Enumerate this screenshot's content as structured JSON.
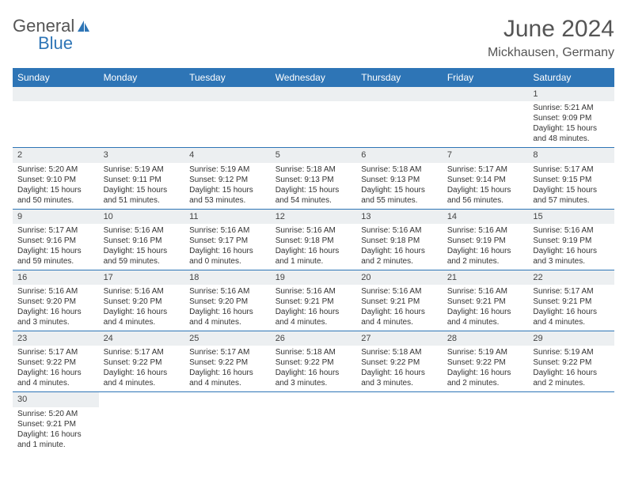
{
  "logo": {
    "text1": "General",
    "text2": "Blue"
  },
  "title": "June 2024",
  "location": "Mickhausen, Germany",
  "colors": {
    "header_bg": "#2e75b6",
    "header_text": "#ffffff",
    "daynum_bg": "#eceff1",
    "rule": "#2e75b6"
  },
  "daynames": [
    "Sunday",
    "Monday",
    "Tuesday",
    "Wednesday",
    "Thursday",
    "Friday",
    "Saturday"
  ],
  "weeks": [
    [
      null,
      null,
      null,
      null,
      null,
      null,
      {
        "n": "1",
        "sr": "Sunrise: 5:21 AM",
        "ss": "Sunset: 9:09 PM",
        "dl": "Daylight: 15 hours and 48 minutes."
      }
    ],
    [
      {
        "n": "2",
        "sr": "Sunrise: 5:20 AM",
        "ss": "Sunset: 9:10 PM",
        "dl": "Daylight: 15 hours and 50 minutes."
      },
      {
        "n": "3",
        "sr": "Sunrise: 5:19 AM",
        "ss": "Sunset: 9:11 PM",
        "dl": "Daylight: 15 hours and 51 minutes."
      },
      {
        "n": "4",
        "sr": "Sunrise: 5:19 AM",
        "ss": "Sunset: 9:12 PM",
        "dl": "Daylight: 15 hours and 53 minutes."
      },
      {
        "n": "5",
        "sr": "Sunrise: 5:18 AM",
        "ss": "Sunset: 9:13 PM",
        "dl": "Daylight: 15 hours and 54 minutes."
      },
      {
        "n": "6",
        "sr": "Sunrise: 5:18 AM",
        "ss": "Sunset: 9:13 PM",
        "dl": "Daylight: 15 hours and 55 minutes."
      },
      {
        "n": "7",
        "sr": "Sunrise: 5:17 AM",
        "ss": "Sunset: 9:14 PM",
        "dl": "Daylight: 15 hours and 56 minutes."
      },
      {
        "n": "8",
        "sr": "Sunrise: 5:17 AM",
        "ss": "Sunset: 9:15 PM",
        "dl": "Daylight: 15 hours and 57 minutes."
      }
    ],
    [
      {
        "n": "9",
        "sr": "Sunrise: 5:17 AM",
        "ss": "Sunset: 9:16 PM",
        "dl": "Daylight: 15 hours and 59 minutes."
      },
      {
        "n": "10",
        "sr": "Sunrise: 5:16 AM",
        "ss": "Sunset: 9:16 PM",
        "dl": "Daylight: 15 hours and 59 minutes."
      },
      {
        "n": "11",
        "sr": "Sunrise: 5:16 AM",
        "ss": "Sunset: 9:17 PM",
        "dl": "Daylight: 16 hours and 0 minutes."
      },
      {
        "n": "12",
        "sr": "Sunrise: 5:16 AM",
        "ss": "Sunset: 9:18 PM",
        "dl": "Daylight: 16 hours and 1 minute."
      },
      {
        "n": "13",
        "sr": "Sunrise: 5:16 AM",
        "ss": "Sunset: 9:18 PM",
        "dl": "Daylight: 16 hours and 2 minutes."
      },
      {
        "n": "14",
        "sr": "Sunrise: 5:16 AM",
        "ss": "Sunset: 9:19 PM",
        "dl": "Daylight: 16 hours and 2 minutes."
      },
      {
        "n": "15",
        "sr": "Sunrise: 5:16 AM",
        "ss": "Sunset: 9:19 PM",
        "dl": "Daylight: 16 hours and 3 minutes."
      }
    ],
    [
      {
        "n": "16",
        "sr": "Sunrise: 5:16 AM",
        "ss": "Sunset: 9:20 PM",
        "dl": "Daylight: 16 hours and 3 minutes."
      },
      {
        "n": "17",
        "sr": "Sunrise: 5:16 AM",
        "ss": "Sunset: 9:20 PM",
        "dl": "Daylight: 16 hours and 4 minutes."
      },
      {
        "n": "18",
        "sr": "Sunrise: 5:16 AM",
        "ss": "Sunset: 9:20 PM",
        "dl": "Daylight: 16 hours and 4 minutes."
      },
      {
        "n": "19",
        "sr": "Sunrise: 5:16 AM",
        "ss": "Sunset: 9:21 PM",
        "dl": "Daylight: 16 hours and 4 minutes."
      },
      {
        "n": "20",
        "sr": "Sunrise: 5:16 AM",
        "ss": "Sunset: 9:21 PM",
        "dl": "Daylight: 16 hours and 4 minutes."
      },
      {
        "n": "21",
        "sr": "Sunrise: 5:16 AM",
        "ss": "Sunset: 9:21 PM",
        "dl": "Daylight: 16 hours and 4 minutes."
      },
      {
        "n": "22",
        "sr": "Sunrise: 5:17 AM",
        "ss": "Sunset: 9:21 PM",
        "dl": "Daylight: 16 hours and 4 minutes."
      }
    ],
    [
      {
        "n": "23",
        "sr": "Sunrise: 5:17 AM",
        "ss": "Sunset: 9:22 PM",
        "dl": "Daylight: 16 hours and 4 minutes."
      },
      {
        "n": "24",
        "sr": "Sunrise: 5:17 AM",
        "ss": "Sunset: 9:22 PM",
        "dl": "Daylight: 16 hours and 4 minutes."
      },
      {
        "n": "25",
        "sr": "Sunrise: 5:17 AM",
        "ss": "Sunset: 9:22 PM",
        "dl": "Daylight: 16 hours and 4 minutes."
      },
      {
        "n": "26",
        "sr": "Sunrise: 5:18 AM",
        "ss": "Sunset: 9:22 PM",
        "dl": "Daylight: 16 hours and 3 minutes."
      },
      {
        "n": "27",
        "sr": "Sunrise: 5:18 AM",
        "ss": "Sunset: 9:22 PM",
        "dl": "Daylight: 16 hours and 3 minutes."
      },
      {
        "n": "28",
        "sr": "Sunrise: 5:19 AM",
        "ss": "Sunset: 9:22 PM",
        "dl": "Daylight: 16 hours and 2 minutes."
      },
      {
        "n": "29",
        "sr": "Sunrise: 5:19 AM",
        "ss": "Sunset: 9:22 PM",
        "dl": "Daylight: 16 hours and 2 minutes."
      }
    ],
    [
      {
        "n": "30",
        "sr": "Sunrise: 5:20 AM",
        "ss": "Sunset: 9:21 PM",
        "dl": "Daylight: 16 hours and 1 minute."
      },
      null,
      null,
      null,
      null,
      null,
      null
    ]
  ]
}
